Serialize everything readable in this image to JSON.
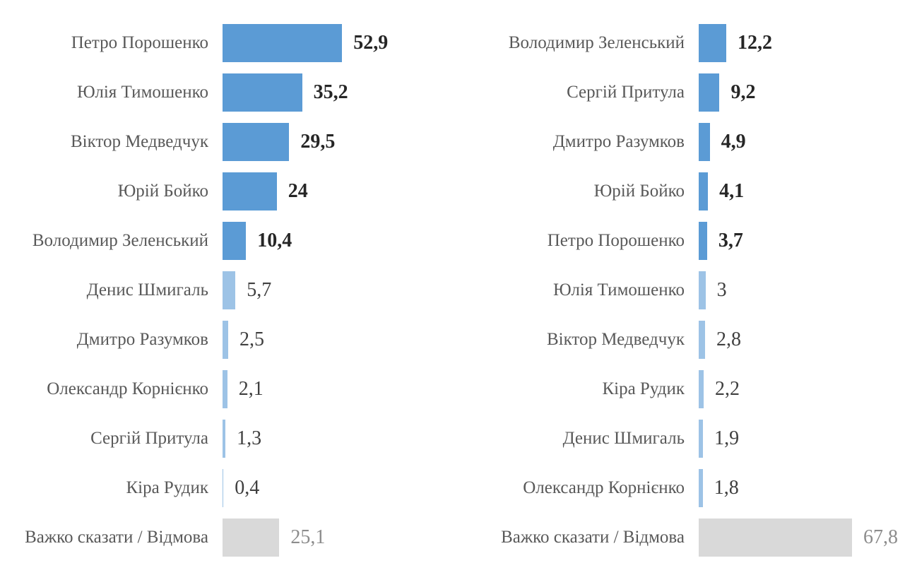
{
  "colors": {
    "bar_dark": "#5B9BD5",
    "bar_light": "#9DC3E6",
    "bar_gray": "#D9D9D9",
    "label_text": "#595959",
    "value_dark": "#262626",
    "value_regular": "#3F3F3F",
    "value_gray": "#8C8C8C"
  },
  "chart_data": [
    {
      "type": "bar",
      "orientation": "horizontal",
      "title": "",
      "xlabel": "",
      "ylabel": "",
      "axis_visible": false,
      "grid": false,
      "legend": false,
      "xlim": [
        0,
        100
      ],
      "categories": [
        "Петро Порошенко",
        "Юлія Тимошенко",
        "Віктор Медведчук",
        "Юрій Бойко",
        "Володимир Зеленський",
        "Денис Шмигаль",
        "Дмитро Разумков",
        "Олександр Корнієнко",
        "Сергій Притула",
        "Кіра Рудик",
        "Важко сказати / Відмова"
      ],
      "values": [
        52.9,
        35.2,
        29.5,
        24,
        10.4,
        5.7,
        2.5,
        2.1,
        1.3,
        0.4,
        25.1
      ],
      "value_labels": [
        "52,9",
        "35,2",
        "29,5",
        "24",
        "10,4",
        "5,7",
        "2,5",
        "2,1",
        "1,3",
        "0,4",
        "25,1"
      ],
      "bar_styles": [
        "dark",
        "dark",
        "dark",
        "dark",
        "dark",
        "light",
        "light",
        "light",
        "light",
        "light",
        "gray"
      ]
    },
    {
      "type": "bar",
      "orientation": "horizontal",
      "title": "",
      "xlabel": "",
      "ylabel": "",
      "axis_visible": false,
      "grid": false,
      "legend": false,
      "xlim": [
        0,
        100
      ],
      "categories": [
        "Володимир Зеленський",
        "Сергій Притула",
        "Дмитро Разумков",
        "Юрій Бойко",
        "Петро Порошенко",
        "Юлія Тимошенко",
        "Віктор Медведчук",
        "Кіра Рудик",
        "Денис Шмигаль",
        "Олександр Корнієнко",
        "Важко сказати / Відмова"
      ],
      "values": [
        12.2,
        9.2,
        4.9,
        4.1,
        3.7,
        3,
        2.8,
        2.2,
        1.9,
        1.8,
        67.8
      ],
      "value_labels": [
        "12,2",
        "9,2",
        "4,9",
        "4,1",
        "3,7",
        "3",
        "2,8",
        "2,2",
        "1,9",
        "1,8",
        "67,8"
      ],
      "bar_styles": [
        "dark",
        "dark",
        "dark",
        "dark",
        "dark",
        "light",
        "light",
        "light",
        "light",
        "light",
        "gray"
      ]
    }
  ]
}
